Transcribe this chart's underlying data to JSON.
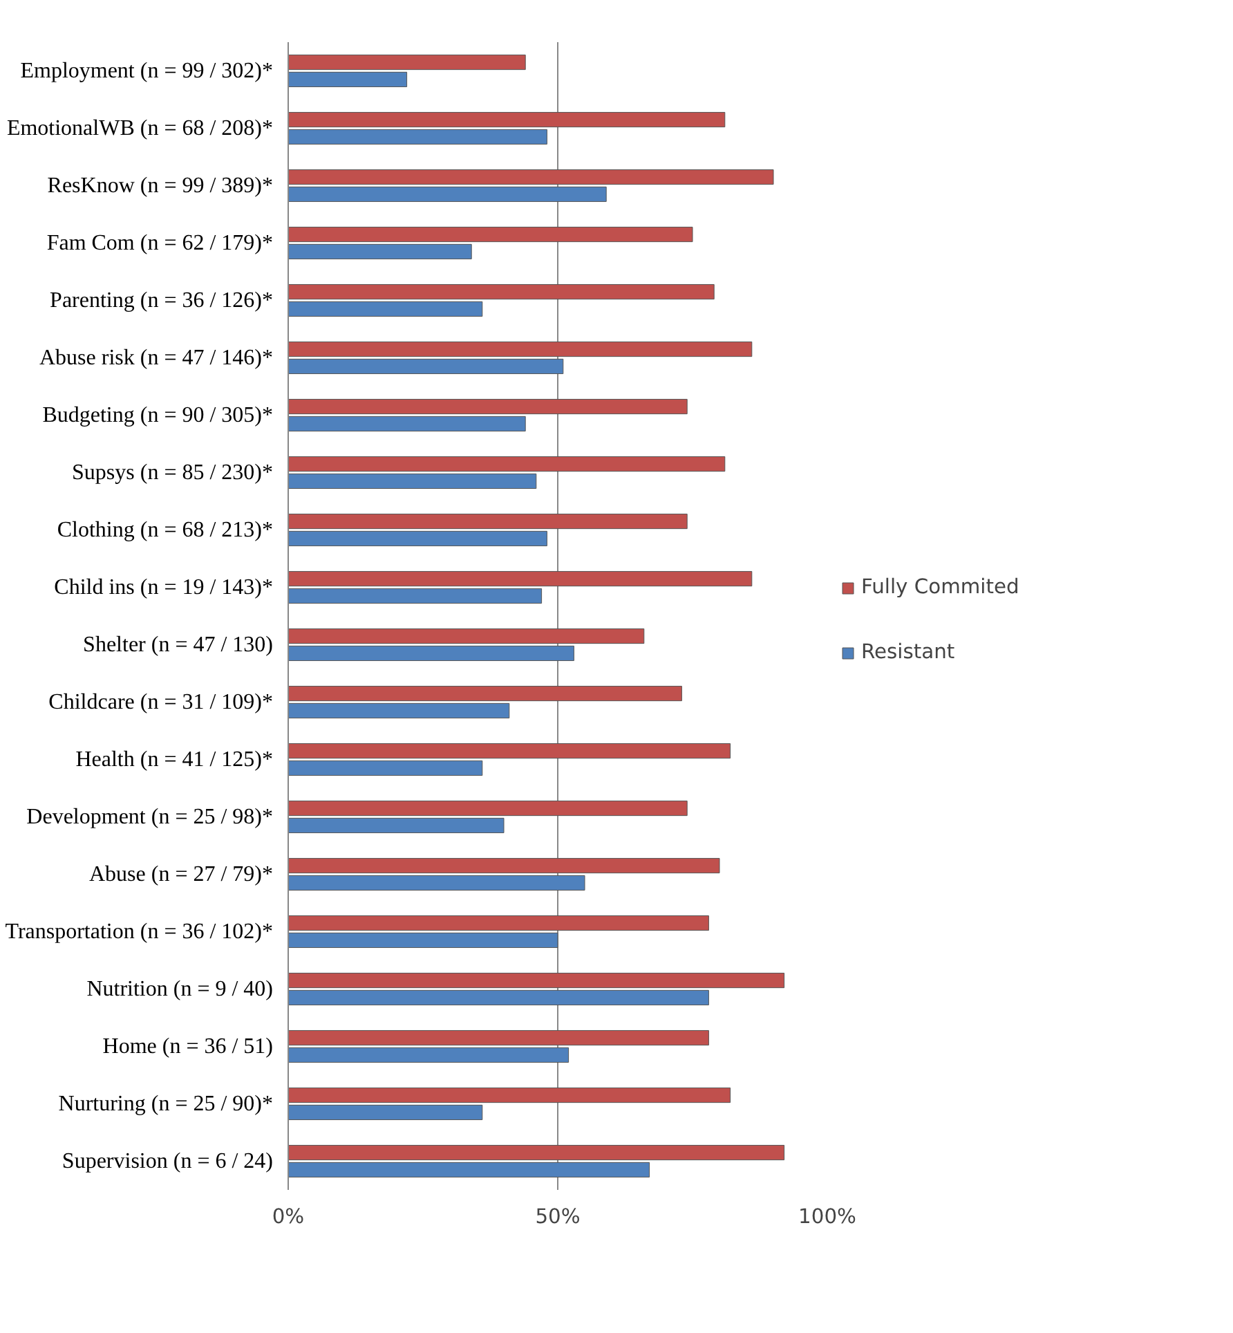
{
  "chart_data": {
    "type": "bar",
    "orientation": "horizontal",
    "categories": [
      "Employment (n = 99 / 302)*",
      "EmotionalWB (n = 68 / 208)*",
      "ResKnow (n = 99 / 389)*",
      "Fam Com (n = 62 / 179)*",
      "Parenting (n = 36 / 126)*",
      "Abuse risk (n = 47 / 146)*",
      "Budgeting (n = 90 / 305)*",
      "Supsys (n = 85 / 230)*",
      "Clothing (n = 68 / 213)*",
      "Child ins (n = 19 / 143)*",
      "Shelter (n = 47 / 130)",
      "Childcare (n = 31 / 109)*",
      "Health (n = 41 / 125)*",
      "Development (n = 25 / 98)*",
      "Abuse (n = 27 / 79)*",
      "Transportation (n = 36 / 102)*",
      "Nutrition (n = 9 / 40)",
      "Home (n = 36 / 51)",
      "Nurturing (n = 25 / 90)*",
      "Supervision (n = 6 / 24)"
    ],
    "series": [
      {
        "name": "Fully Commited",
        "color": "#c0504d",
        "values": [
          44,
          81,
          90,
          75,
          79,
          86,
          74,
          81,
          74,
          86,
          66,
          73,
          82,
          74,
          80,
          78,
          92,
          78,
          82,
          92
        ]
      },
      {
        "name": "Resistant",
        "color": "#4f81bd",
        "values": [
          22,
          48,
          59,
          34,
          36,
          51,
          44,
          46,
          48,
          47,
          53,
          41,
          36,
          40,
          55,
          50,
          78,
          52,
          36,
          67
        ]
      }
    ],
    "xlim": [
      0,
      100
    ],
    "xticks": [
      {
        "value": 0,
        "label": "0%"
      },
      {
        "value": 50,
        "label": "50%"
      },
      {
        "value": 100,
        "label": "100%"
      }
    ],
    "grid": "x",
    "legend": "right"
  }
}
